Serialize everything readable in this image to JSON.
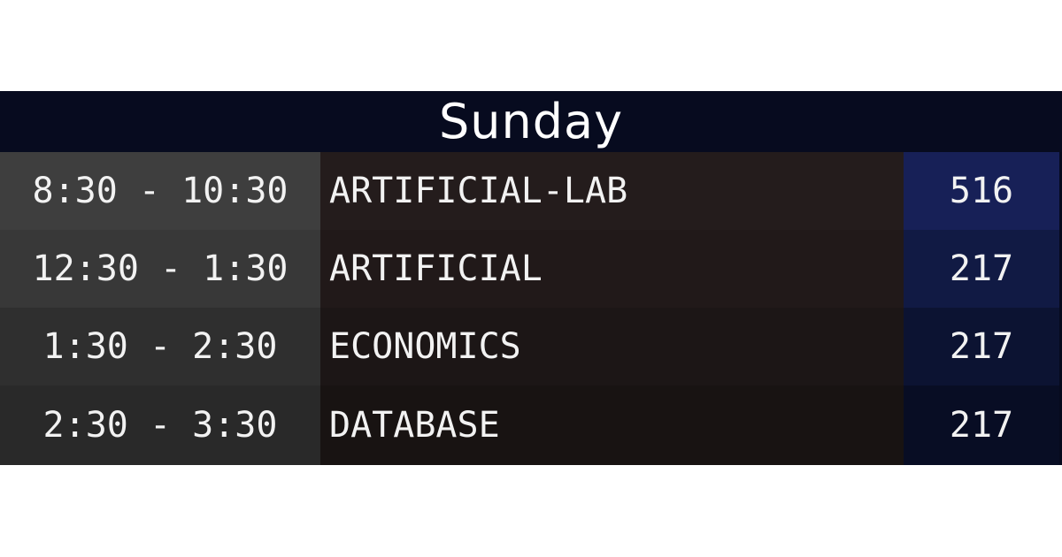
{
  "schedule": {
    "day": "Sunday",
    "rows": [
      {
        "time": "8:30 - 10:30",
        "subject": "ARTIFICIAL-LAB",
        "room": "516"
      },
      {
        "time": "12:30 - 1:30",
        "subject": "ARTIFICIAL",
        "room": "217"
      },
      {
        "time": "1:30 - 2:30",
        "subject": "ECONOMICS",
        "room": "217"
      },
      {
        "time": "2:30 - 3:30",
        "subject": "DATABASE",
        "room": "217"
      }
    ]
  },
  "colors": {
    "header_bg": "#070b1f",
    "room_accent": "#172057",
    "text": "#f2f2f2"
  }
}
